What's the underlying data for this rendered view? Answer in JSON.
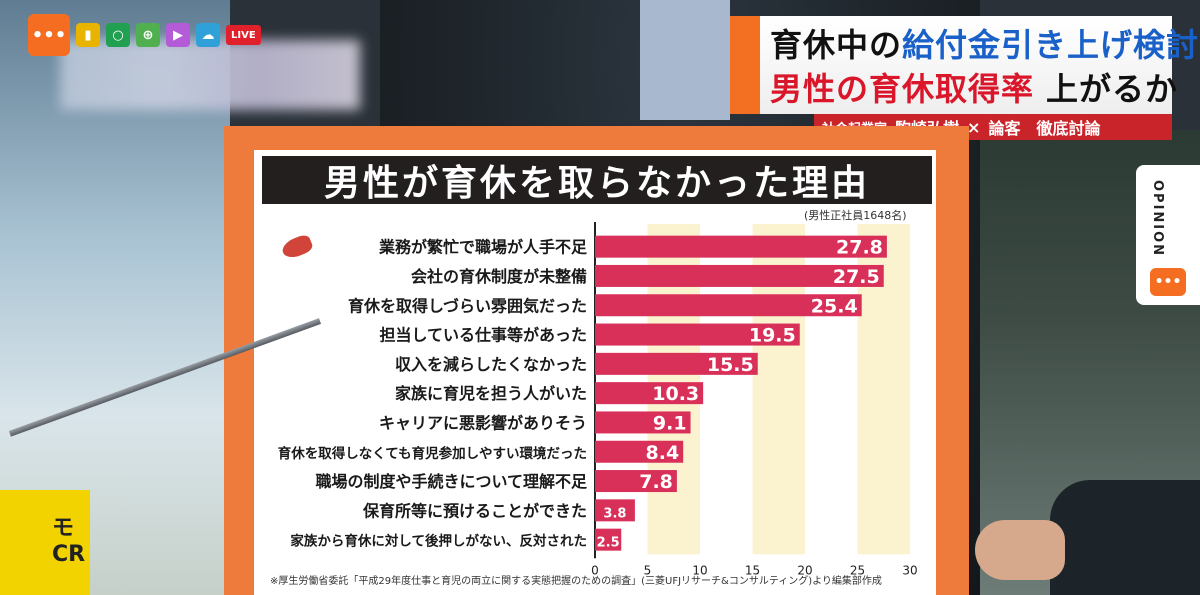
{
  "toolbar": {
    "live_label": "LIVE",
    "icons": [
      "chat-icon",
      "bookmark-icon",
      "search-icon",
      "globe-icon",
      "play-icon",
      "cloud-icon"
    ]
  },
  "headline": {
    "line1_part1": "育休中の",
    "line1_part2": "給付金引き上げ検討",
    "line2_part1": "男性の育休取得率",
    "line2_part2": "上がるか",
    "sub_role": "社会起業家",
    "sub_name": "駒崎弘樹",
    "sub_x": "×",
    "sub_rest": "論客　徹底討論"
  },
  "opinion": {
    "label": "OPINION"
  },
  "mug": {
    "text": "モ\nCR"
  },
  "colors": {
    "bar": "#d9305a",
    "band": "#fbf3d0",
    "orange": "#ee7a3b",
    "accent_red": "#c9242a"
  },
  "chart_data": {
    "type": "bar",
    "orientation": "horizontal",
    "title": "男性が育休を取らなかった理由",
    "note": "(男性正社員1648名)",
    "source": "※厚生労働省委託「平成29年度仕事と育児の両立に関する実態把握のための調査」(三菱UFJリサーチ&コンサルティング)より編集部作成",
    "categories": [
      "業務が繁忙で職場が人手不足",
      "会社の育休制度が未整備",
      "育休を取得しづらい雰囲気だった",
      "担当している仕事等があった",
      "収入を減らしたくなかった",
      "家族に育児を担う人がいた",
      "キャリアに悪影響がありそう",
      "育休を取得しなくても育児参加しやすい環境だった",
      "職場の制度や手続きについて理解不足",
      "保育所等に預けることができた",
      "家族から育休に対して後押しがない、反対された"
    ],
    "values": [
      27.8,
      27.5,
      25.4,
      19.5,
      15.5,
      10.3,
      9.1,
      8.4,
      7.8,
      3.8,
      2.5
    ],
    "data_labels": [
      "27.8",
      "27.5",
      "25.4",
      "19.5",
      "15.5",
      "10.3",
      "9.1",
      "8.4",
      "7.8",
      "3.8",
      "2.5"
    ],
    "xlim": [
      0,
      30
    ],
    "xticks": [
      "0",
      "5",
      "10",
      "15",
      "20",
      "25",
      "30"
    ],
    "grid": false
  }
}
